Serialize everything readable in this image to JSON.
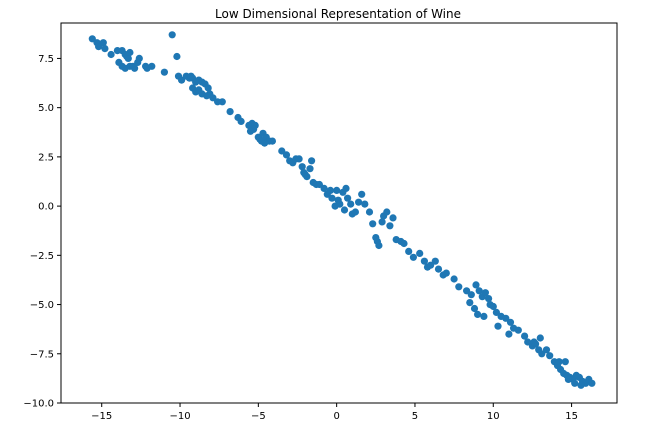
{
  "chart_data": {
    "type": "scatter",
    "title": "Low Dimensional Representation of Wine",
    "xlabel": "",
    "ylabel": "",
    "xlim": [
      -17.6,
      17.9
    ],
    "ylim": [
      -10.0,
      9.3
    ],
    "x_ticks": [
      -15,
      -10,
      -5,
      0,
      5,
      10,
      15
    ],
    "x_tick_labels": [
      "−15",
      "−10",
      "−5",
      "0",
      "5",
      "10",
      "15"
    ],
    "y_ticks": [
      -10.0,
      -7.5,
      -5.0,
      -2.5,
      0.0,
      2.5,
      5.0,
      7.5
    ],
    "y_tick_labels": [
      "−10.0",
      "−7.5",
      "−5.0",
      "−2.5",
      "0.0",
      "2.5",
      "5.0",
      "7.5"
    ],
    "grid": false,
    "legend": "none",
    "marker_color": "#1f77b4",
    "series": [
      {
        "points": [
          [
            -15.6,
            8.5
          ],
          [
            -15.3,
            8.3
          ],
          [
            -15.2,
            8.1
          ],
          [
            -14.9,
            8.3
          ],
          [
            -14.8,
            8.0
          ],
          [
            -14.4,
            7.7
          ],
          [
            -14.0,
            7.9
          ],
          [
            -13.7,
            7.9
          ],
          [
            -13.5,
            7.7
          ],
          [
            -13.4,
            7.6
          ],
          [
            -13.3,
            7.5
          ],
          [
            -13.2,
            7.8
          ],
          [
            -13.9,
            7.3
          ],
          [
            -13.7,
            7.1
          ],
          [
            -13.5,
            7.0
          ],
          [
            -13.2,
            7.1
          ],
          [
            -13.0,
            7.1
          ],
          [
            -12.6,
            7.5
          ],
          [
            -12.7,
            7.3
          ],
          [
            -12.9,
            7.0
          ],
          [
            -12.2,
            7.1
          ],
          [
            -12.1,
            7.0
          ],
          [
            -11.8,
            7.1
          ],
          [
            -11.0,
            6.8
          ],
          [
            -10.5,
            8.7
          ],
          [
            -10.2,
            7.6
          ],
          [
            -10.1,
            6.6
          ],
          [
            -9.9,
            6.4
          ],
          [
            -9.6,
            6.6
          ],
          [
            -9.4,
            6.5
          ],
          [
            -9.3,
            6.6
          ],
          [
            -9.2,
            6.5
          ],
          [
            -9.0,
            6.3
          ],
          [
            -8.8,
            6.4
          ],
          [
            -8.6,
            6.3
          ],
          [
            -8.4,
            6.2
          ],
          [
            -8.2,
            6.0
          ],
          [
            -8.1,
            5.7
          ],
          [
            -9.2,
            6.0
          ],
          [
            -9.0,
            5.8
          ],
          [
            -8.8,
            5.9
          ],
          [
            -8.6,
            5.7
          ],
          [
            -8.3,
            5.6
          ],
          [
            -7.9,
            5.5
          ],
          [
            -7.6,
            5.3
          ],
          [
            -7.3,
            5.3
          ],
          [
            -6.8,
            4.8
          ],
          [
            -6.3,
            4.5
          ],
          [
            -6.1,
            4.3
          ],
          [
            -5.6,
            4.1
          ],
          [
            -5.4,
            4.2
          ],
          [
            -5.2,
            4.1
          ],
          [
            -5.3,
            3.9
          ],
          [
            -5.5,
            3.8
          ],
          [
            -5.0,
            3.5
          ],
          [
            -4.9,
            3.4
          ],
          [
            -4.7,
            3.7
          ],
          [
            -4.5,
            3.5
          ],
          [
            -4.3,
            3.3
          ],
          [
            -4.6,
            3.2
          ],
          [
            -4.8,
            3.3
          ],
          [
            -4.1,
            3.3
          ],
          [
            -3.5,
            2.8
          ],
          [
            -3.2,
            2.6
          ],
          [
            -3.0,
            2.3
          ],
          [
            -2.8,
            2.2
          ],
          [
            -2.6,
            2.4
          ],
          [
            -2.4,
            2.4
          ],
          [
            -2.2,
            2.0
          ],
          [
            -2.1,
            1.7
          ],
          [
            -2.0,
            1.6
          ],
          [
            -1.9,
            1.5
          ],
          [
            -1.7,
            1.9
          ],
          [
            -1.6,
            2.3
          ],
          [
            -1.5,
            1.2
          ],
          [
            -1.3,
            1.1
          ],
          [
            -1.1,
            1.1
          ],
          [
            -0.8,
            0.9
          ],
          [
            -0.6,
            0.6
          ],
          [
            -0.4,
            0.8
          ],
          [
            -0.3,
            0.4
          ],
          [
            0.0,
            0.8
          ],
          [
            0.1,
            0.3
          ],
          [
            -0.1,
            0.0
          ],
          [
            0.2,
            0.1
          ],
          [
            0.4,
            0.7
          ],
          [
            0.5,
            -0.2
          ],
          [
            0.6,
            0.9
          ],
          [
            0.7,
            0.4
          ],
          [
            0.9,
            0.1
          ],
          [
            1.0,
            -0.4
          ],
          [
            1.2,
            -0.3
          ],
          [
            1.4,
            0.2
          ],
          [
            1.6,
            0.6
          ],
          [
            1.8,
            0.1
          ],
          [
            2.1,
            -0.3
          ],
          [
            2.3,
            -0.9
          ],
          [
            2.5,
            -1.6
          ],
          [
            2.6,
            -1.8
          ],
          [
            2.7,
            -2.0
          ],
          [
            2.9,
            -0.8
          ],
          [
            3.0,
            -0.5
          ],
          [
            3.2,
            -0.3
          ],
          [
            3.4,
            -1.0
          ],
          [
            3.6,
            -0.6
          ],
          [
            3.8,
            -1.7
          ],
          [
            4.1,
            -1.8
          ],
          [
            4.3,
            -1.9
          ],
          [
            4.6,
            -2.3
          ],
          [
            4.9,
            -2.6
          ],
          [
            5.3,
            -2.4
          ],
          [
            5.6,
            -2.8
          ],
          [
            5.8,
            -3.1
          ],
          [
            6.0,
            -3.0
          ],
          [
            6.3,
            -2.8
          ],
          [
            6.5,
            -3.2
          ],
          [
            6.8,
            -3.5
          ],
          [
            7.0,
            -3.4
          ],
          [
            7.5,
            -3.7
          ],
          [
            7.8,
            -4.1
          ],
          [
            8.3,
            -4.3
          ],
          [
            8.6,
            -4.5
          ],
          [
            8.9,
            -4.0
          ],
          [
            9.1,
            -4.3
          ],
          [
            9.3,
            -4.6
          ],
          [
            9.5,
            -4.4
          ],
          [
            9.7,
            -4.7
          ],
          [
            9.8,
            -5.0
          ],
          [
            10.0,
            -5.1
          ],
          [
            9.4,
            -5.6
          ],
          [
            9.0,
            -5.5
          ],
          [
            8.8,
            -5.2
          ],
          [
            8.5,
            -4.9
          ],
          [
            10.2,
            -5.4
          ],
          [
            10.5,
            -5.6
          ],
          [
            10.8,
            -5.7
          ],
          [
            11.1,
            -5.9
          ],
          [
            11.3,
            -6.2
          ],
          [
            11.0,
            -6.5
          ],
          [
            10.3,
            -6.1
          ],
          [
            11.6,
            -6.3
          ],
          [
            12.0,
            -6.6
          ],
          [
            12.2,
            -6.9
          ],
          [
            12.5,
            -7.1
          ],
          [
            12.7,
            -7.0
          ],
          [
            12.9,
            -7.3
          ],
          [
            13.1,
            -7.5
          ],
          [
            13.4,
            -7.3
          ],
          [
            13.6,
            -7.6
          ],
          [
            13.9,
            -7.9
          ],
          [
            14.1,
            -8.1
          ],
          [
            14.3,
            -8.3
          ],
          [
            14.5,
            -8.5
          ],
          [
            14.7,
            -8.6
          ],
          [
            14.9,
            -8.7
          ],
          [
            15.1,
            -8.8
          ],
          [
            15.3,
            -8.6
          ],
          [
            15.5,
            -8.7
          ],
          [
            15.7,
            -8.9
          ],
          [
            15.9,
            -9.0
          ],
          [
            16.1,
            -8.8
          ],
          [
            16.3,
            -9.0
          ],
          [
            15.6,
            -9.1
          ],
          [
            15.2,
            -9.0
          ],
          [
            14.8,
            -8.8
          ],
          [
            13.0,
            -6.7
          ],
          [
            12.6,
            -6.9
          ],
          [
            14.6,
            -7.9
          ],
          [
            14.2,
            -7.9
          ]
        ]
      }
    ]
  }
}
